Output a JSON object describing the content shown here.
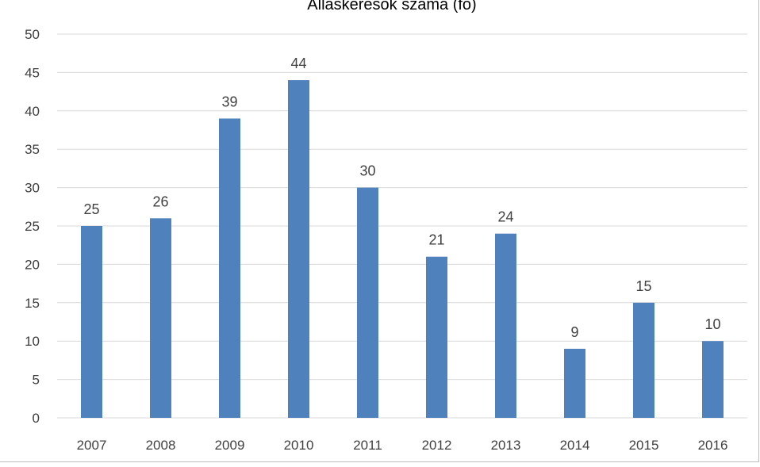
{
  "chart_data": {
    "type": "bar",
    "title": "Álláskeresők száma (fő)",
    "categories": [
      "2007",
      "2008",
      "2009",
      "2010",
      "2011",
      "2012",
      "2013",
      "2014",
      "2015",
      "2016"
    ],
    "values": [
      25,
      26,
      39,
      44,
      30,
      21,
      24,
      9,
      15,
      10
    ],
    "xlabel": "",
    "ylabel": "",
    "ylim": [
      0,
      50
    ],
    "yticks": [
      0,
      5,
      10,
      15,
      20,
      25,
      30,
      35,
      40,
      45,
      50
    ],
    "grid": true,
    "legend": "none",
    "bar_color": "#4f81bd",
    "grid_color": "#d9d9d9",
    "data_labels": true
  }
}
